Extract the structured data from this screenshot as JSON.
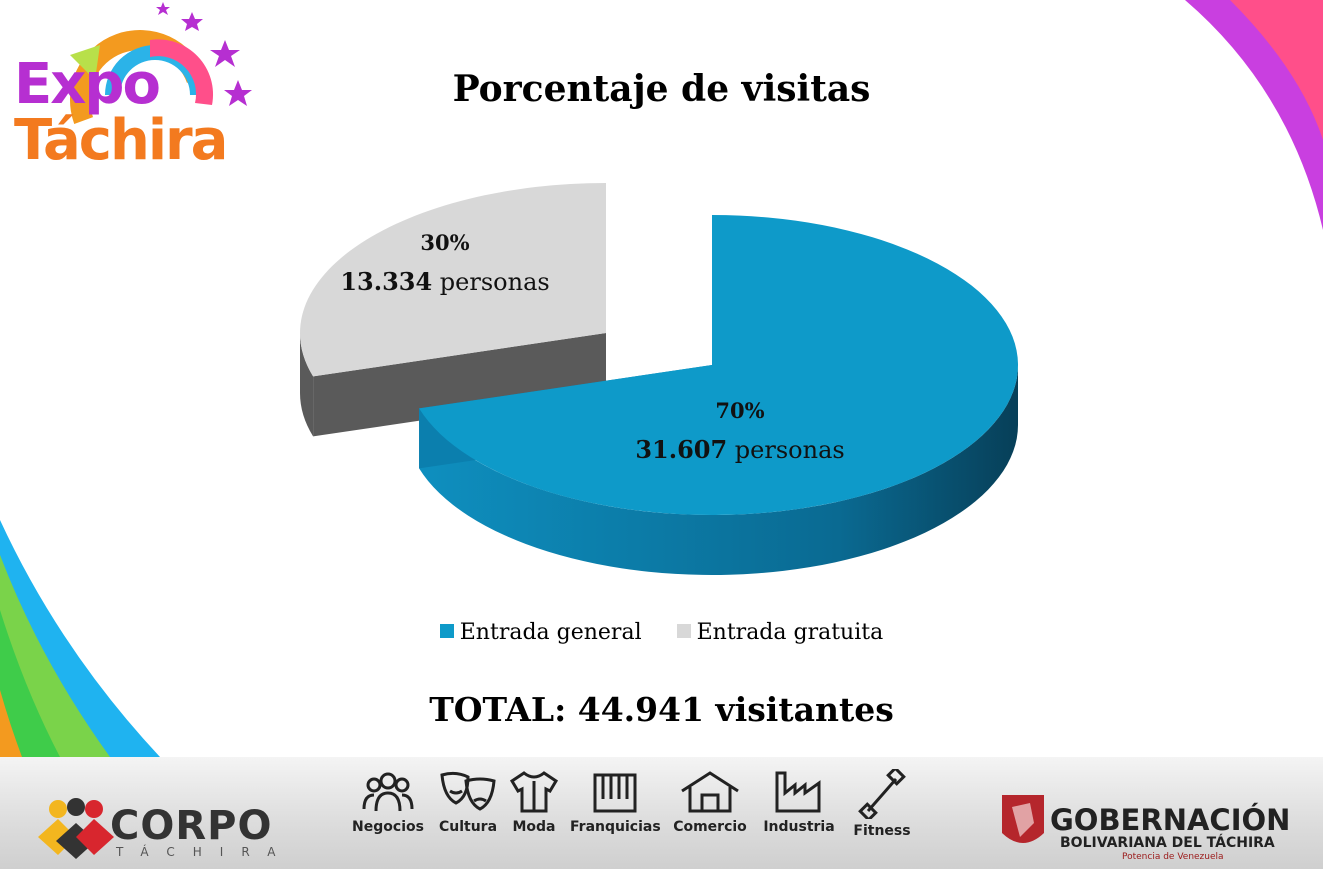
{
  "header": {
    "logo_line1": "Expo",
    "logo_line2": "Táchira"
  },
  "chart_data": {
    "type": "pie",
    "title": "Porcentaje de visitas",
    "style": "3d-exploded",
    "legend_position": "bottom",
    "slices": [
      {
        "name": "Entrada general",
        "value": 31607,
        "percent": 70,
        "percent_label": "70%",
        "count_label": "31.607",
        "unit_label": "personas",
        "color": "#0e9ac9",
        "side_color": "#0a6a92"
      },
      {
        "name": "Entrada gratuita",
        "value": 13334,
        "percent": 30,
        "percent_label": "30%",
        "count_label": "13.334",
        "unit_label": "personas",
        "color": "#d8d8d8",
        "side_color": "#5a5a5a"
      }
    ]
  },
  "total_text": "TOTAL: 44.941 visitantes",
  "footer": {
    "categories": [
      {
        "label": "Negocios",
        "icon": "people-icon"
      },
      {
        "label": "Cultura",
        "icon": "theater-masks-icon"
      },
      {
        "label": "Moda",
        "icon": "shirt-icon"
      },
      {
        "label": "Franquicias",
        "icon": "storefront-icon"
      },
      {
        "label": "Comercio",
        "icon": "house-icon"
      },
      {
        "label": "Industria",
        "icon": "factory-icon"
      },
      {
        "label": "Fitness",
        "icon": "dumbbell-icon"
      }
    ],
    "corpo_name": "CORPO",
    "corpo_sub": "TÁCHIRA",
    "gob_title": "GOBERNACIÓN",
    "gob_subtitle": "BOLIVARIANA DEL TÁCHIRA",
    "gob_tagline": "Potencia de Venezuela"
  }
}
